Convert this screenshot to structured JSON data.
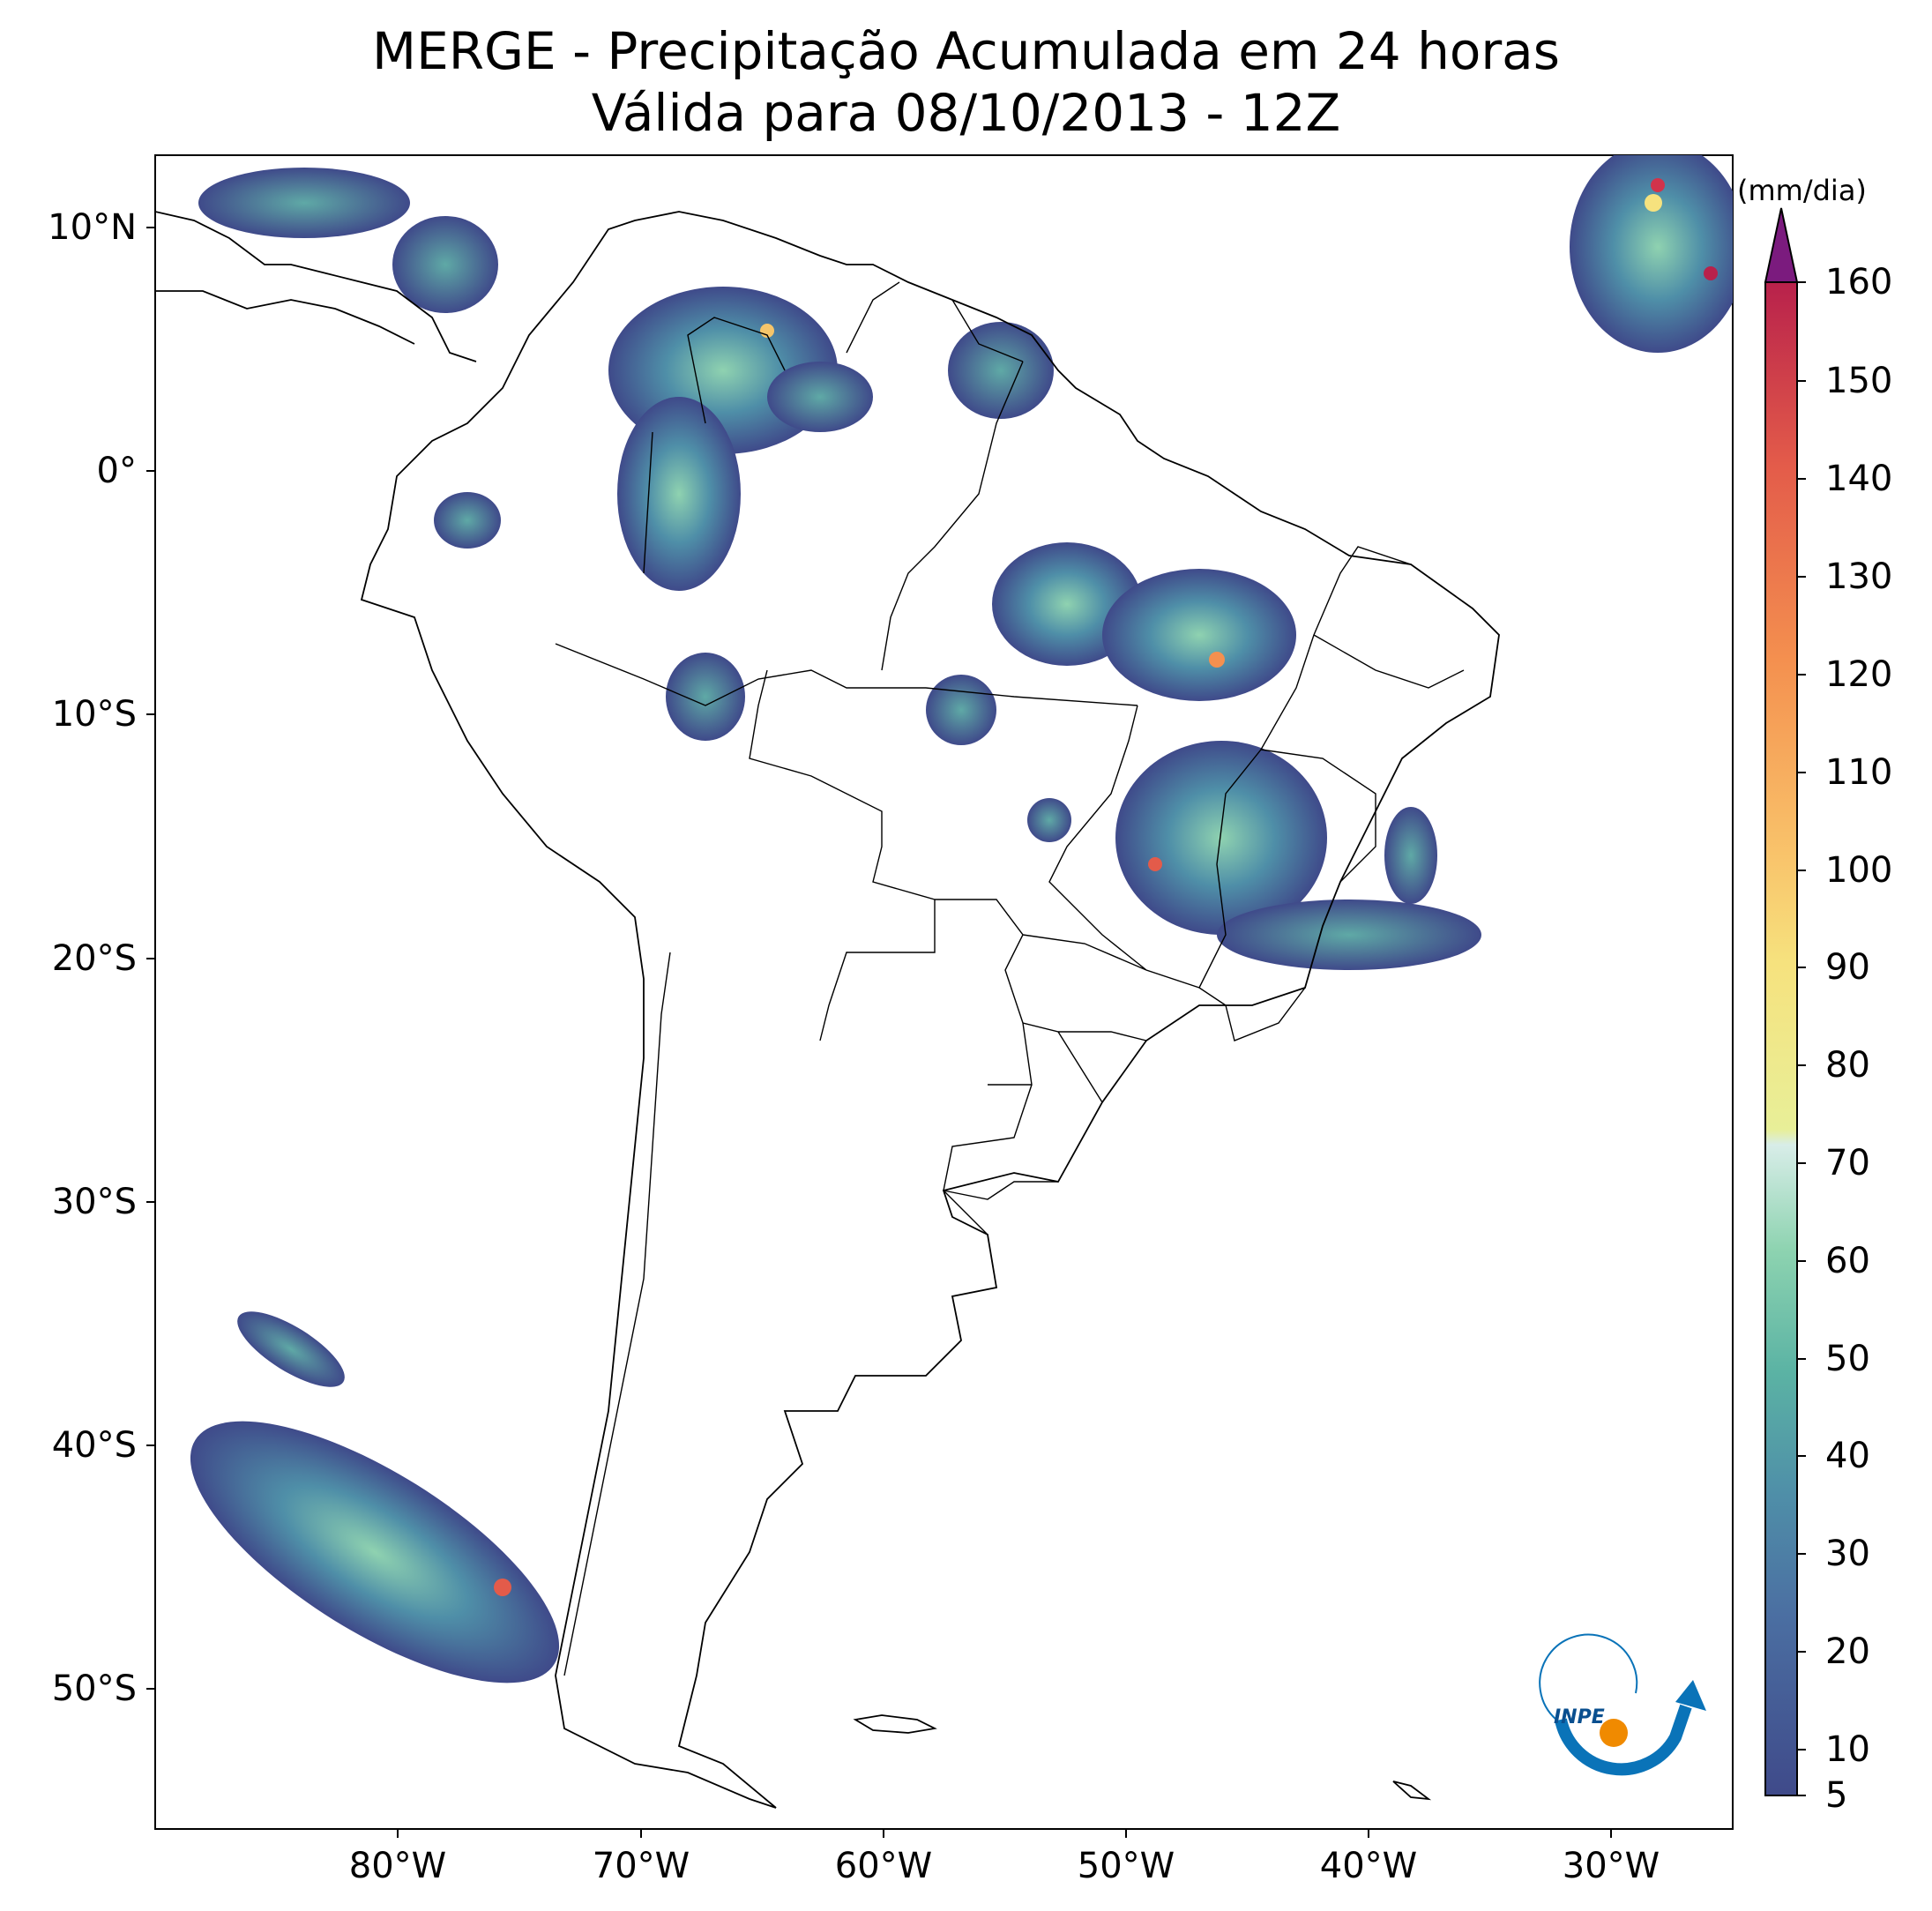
{
  "title": {
    "line1": "MERGE - Precipitação Acumulada em 24 horas",
    "line2": "Válida para 08/10/2013 - 12Z"
  },
  "axes": {
    "lat_ticks": [
      "10°N",
      "0°",
      "10°S",
      "20°S",
      "30°S",
      "40°S",
      "50°S"
    ],
    "lon_ticks": [
      "80°W",
      "70°W",
      "60°W",
      "50°W",
      "40°W",
      "30°W"
    ],
    "lon_range": [
      -90,
      -25
    ],
    "lat_range": [
      -56,
      13
    ]
  },
  "colorbar": {
    "units": "(mm/dia)",
    "ticks": [
      "5",
      "10",
      "20",
      "30",
      "40",
      "50",
      "60",
      "70",
      "80",
      "90",
      "100",
      "110",
      "120",
      "130",
      "140",
      "150",
      "160"
    ],
    "extend": "max",
    "colormap": "Spectral_r",
    "colors": {
      "low": "#3f4a8a",
      "mid_low": "#4b83a8",
      "mid": "#6cc4a4",
      "pale": "#d8ede8",
      "yellow": "#f4e88c",
      "orange": "#f59a55",
      "red": "#d1334b",
      "extend_top": "#7b1b7e"
    }
  },
  "logo": {
    "text": "INPE",
    "colors": {
      "blue": "#0a73b8",
      "orange": "#f08a00"
    }
  },
  "map": {
    "coastline_color": "#000000",
    "background": "#ffffff"
  }
}
